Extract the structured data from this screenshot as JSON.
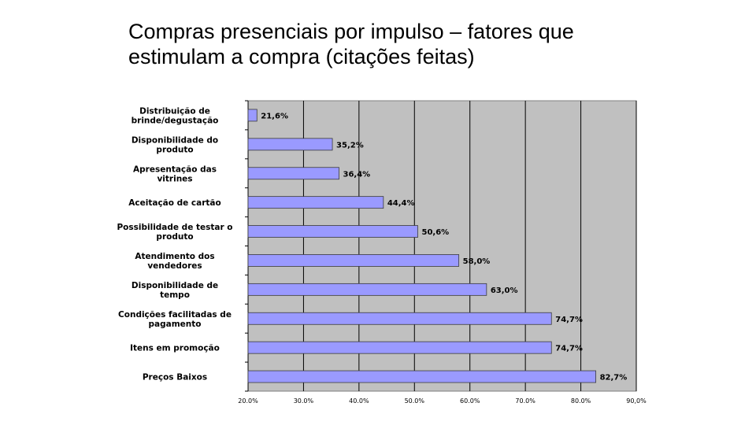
{
  "title": "Compras presenciais por impulso – fatores que\nestimulam a compra (citações feitas)",
  "chart_data": {
    "type": "bar",
    "orientation": "horizontal",
    "categories": [
      "Distribuição de\nbrinde/degustação",
      "Disponibilidade do\nproduto",
      "Apresentação das\nvitrines",
      "Aceitação de cartão",
      "Possibilidade de testar o\nproduto",
      "Atendimento dos\nvendedores",
      "Disponibilidade de\ntempo",
      "Condições facilitadas de\npagamento",
      "Itens em promoção",
      "Preços Baixos"
    ],
    "values": [
      21.6,
      35.2,
      36.4,
      44.4,
      50.6,
      58.0,
      63.0,
      74.7,
      74.7,
      82.7
    ],
    "value_labels": [
      "21,6%",
      "35,2%",
      "36,4%",
      "44,4%",
      "50,6%",
      "58,0%",
      "63,0%",
      "74,7%",
      "74,7%",
      "82,7%"
    ],
    "xlim": [
      20,
      90
    ],
    "ticks": [
      20,
      30,
      40,
      50,
      60,
      70,
      80,
      90
    ],
    "tick_labels": [
      "20.0%",
      "30.0%",
      "40.0%",
      "50.0%",
      "60.0%",
      "70.0%",
      "80.0%",
      "90,0%"
    ],
    "grid": true,
    "legend": "none",
    "colors": {
      "bar": "#9a9aff",
      "bar_edge": "#3a3a3a",
      "plot_bg": "#c0c0c0",
      "grid": "#000000"
    }
  }
}
